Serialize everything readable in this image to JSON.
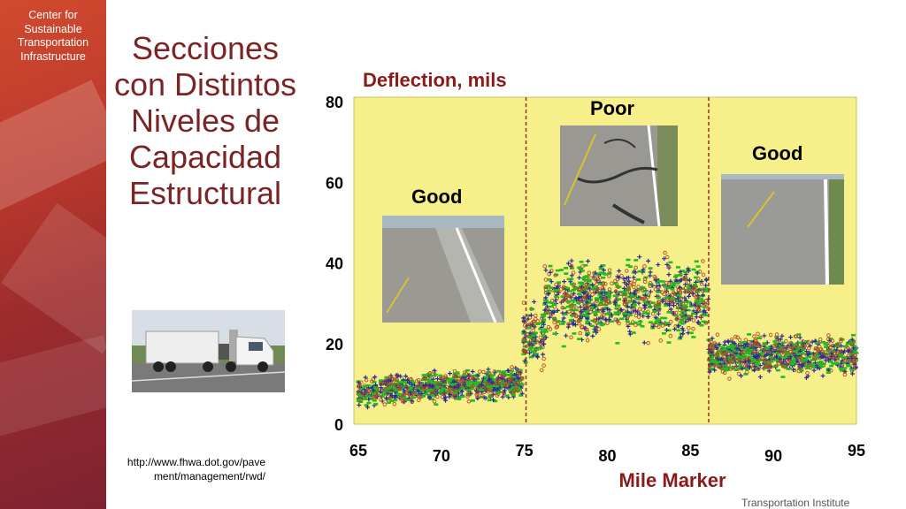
{
  "sidebar": {
    "org_lines": [
      "Center for",
      "Sustainable",
      "Transportation",
      "Infrastructure"
    ]
  },
  "slide": {
    "title_lines": [
      "Secciones",
      "con Distintos",
      "Niveles de",
      "Capacidad",
      "Estructural"
    ],
    "url_lines": [
      "http://www.fhwa.dot.gov/pave",
      "ment/management/rwd/"
    ],
    "footer_text": "Transportation Institute"
  },
  "photos": {
    "good_left": "Good",
    "poor": "Poor",
    "good_right": "Good"
  },
  "colors": {
    "sidebar": "#b8382c",
    "title": "#7a2426",
    "chart_title": "#8b1a1a",
    "plot_bg": "#f7f08a",
    "divider": "#a0282a",
    "series_blue": "#2a2a9a",
    "series_green": "#22bb22",
    "series_red": "#b04a2a"
  },
  "chart_data": {
    "type": "scatter",
    "title": "Deflection, mils",
    "xlabel": "Mile Marker",
    "ylabel": "",
    "xlim": [
      65,
      95
    ],
    "ylim": [
      0,
      80
    ],
    "x_ticks": [
      65,
      70,
      75,
      80,
      85,
      90,
      95
    ],
    "y_ticks": [
      0,
      20,
      40,
      60,
      80
    ],
    "grid": false,
    "dividers": [
      75.1,
      86.1
    ],
    "series": [
      {
        "marker": "plus",
        "color": "#2a2a9a"
      },
      {
        "marker": "dash",
        "color": "#22bb22"
      },
      {
        "marker": "circle",
        "color": "#b04a2a"
      }
    ],
    "segments": [
      {
        "x_range": [
          65,
          74.9
        ],
        "mean": 9,
        "spread": 3,
        "label": "Good"
      },
      {
        "x_range": [
          74.9,
          76.2
        ],
        "mean": 22,
        "spread": 6,
        "label": ""
      },
      {
        "x_range": [
          76.2,
          86.1
        ],
        "mean": 31,
        "spread": 8,
        "label": "Poor"
      },
      {
        "x_range": [
          86.1,
          95
        ],
        "mean": 17,
        "spread": 4,
        "label": "Good"
      }
    ]
  }
}
